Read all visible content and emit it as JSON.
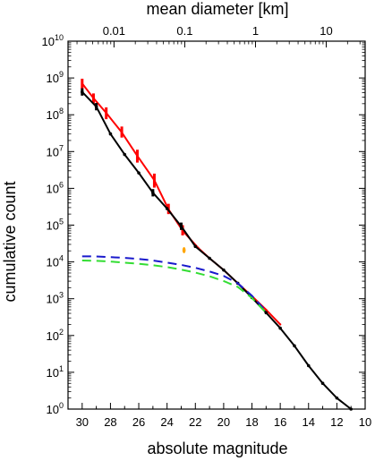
{
  "chart_data": {
    "type": "line",
    "xlabel": "absolute magnitude",
    "ylabel": "cumulative count",
    "top_axis_label": "mean diameter [km]",
    "x_range": [
      31,
      10
    ],
    "y_range_log10": [
      0,
      10
    ],
    "y_scale": "log",
    "grid": false,
    "x_ticks": [
      "30",
      "28",
      "26",
      "24",
      "22",
      "20",
      "18",
      "16",
      "14",
      "12",
      "10"
    ],
    "x_tick_values": [
      30,
      28,
      26,
      24,
      22,
      20,
      18,
      16,
      14,
      12,
      10
    ],
    "y_ticks": [
      {
        "base": "10",
        "exp": "0",
        "value": 0
      },
      {
        "base": "10",
        "exp": "1",
        "value": 1
      },
      {
        "base": "10",
        "exp": "2",
        "value": 2
      },
      {
        "base": "10",
        "exp": "3",
        "value": 3
      },
      {
        "base": "10",
        "exp": "4",
        "value": 4
      },
      {
        "base": "10",
        "exp": "5",
        "value": 5
      },
      {
        "base": "10",
        "exp": "6",
        "value": 6
      },
      {
        "base": "10",
        "exp": "7",
        "value": 7
      },
      {
        "base": "10",
        "exp": "8",
        "value": 8
      },
      {
        "base": "10",
        "exp": "9",
        "value": 9
      },
      {
        "base": "10",
        "exp": "10",
        "value": 10
      }
    ],
    "top_ticks": [
      {
        "label": "0.01",
        "h": 27.75
      },
      {
        "label": "0.1",
        "h": 22.75
      },
      {
        "label": "1",
        "h": 17.75
      },
      {
        "label": "10",
        "h": 12.75
      }
    ],
    "series": [
      {
        "color": "#ff0000",
        "style": "solid-with-errorbars",
        "points": [
          {
            "h": 30.0,
            "log": 8.85,
            "lo": 8.7,
            "hi": 8.98
          },
          {
            "h": 29.2,
            "log": 8.45,
            "lo": 8.3,
            "hi": 8.58
          },
          {
            "h": 28.3,
            "log": 8.05,
            "lo": 7.88,
            "hi": 8.2
          },
          {
            "h": 27.2,
            "log": 7.52,
            "lo": 7.38,
            "hi": 7.68
          },
          {
            "h": 26.1,
            "log": 6.88,
            "lo": 6.7,
            "hi": 7.05
          },
          {
            "h": 24.9,
            "log": 6.22,
            "lo": 6.02,
            "hi": 6.4
          },
          {
            "h": 23.9,
            "log": 5.43,
            "lo": 5.3,
            "hi": 5.58
          },
          {
            "h": 22.9,
            "log": 4.85,
            "lo": 4.72,
            "hi": 5.0
          },
          {
            "h": 21.8,
            "log": 4.38,
            "lo": 4.38,
            "hi": 4.38
          },
          {
            "h": 21.0,
            "log": 4.1,
            "lo": 4.1,
            "hi": 4.1
          },
          {
            "h": 20.0,
            "log": 3.78,
            "lo": 3.78,
            "hi": 3.78
          },
          {
            "h": 19.0,
            "log": 3.42,
            "lo": 3.42,
            "hi": 3.42
          },
          {
            "h": 18.0,
            "log": 3.07,
            "lo": 3.07,
            "hi": 3.07
          },
          {
            "h": 17.0,
            "log": 2.7,
            "lo": 2.7,
            "hi": 2.7
          },
          {
            "h": 16.0,
            "log": 2.3,
            "lo": 2.3,
            "hi": 2.3
          }
        ]
      },
      {
        "color": "#000000",
        "style": "solid-with-points",
        "points": [
          {
            "h": 30.0,
            "log": 8.62,
            "lo": 8.52,
            "hi": 8.72
          },
          {
            "h": 29.0,
            "log": 8.22,
            "lo": 8.12,
            "hi": 8.32
          },
          {
            "h": 28.0,
            "log": 7.48
          },
          {
            "h": 27.0,
            "log": 6.92
          },
          {
            "h": 26.0,
            "log": 6.42
          },
          {
            "h": 25.0,
            "log": 5.88,
            "lo": 5.78,
            "hi": 5.98
          },
          {
            "h": 24.0,
            "log": 5.45
          },
          {
            "h": 23.0,
            "log": 4.97,
            "lo": 4.87,
            "hi": 5.07
          },
          {
            "h": 22.0,
            "log": 4.42
          },
          {
            "h": 21.0,
            "log": 4.1
          },
          {
            "h": 20.0,
            "log": 3.78
          },
          {
            "h": 19.0,
            "log": 3.42
          },
          {
            "h": 18.0,
            "log": 3.03
          },
          {
            "h": 17.0,
            "log": 2.62
          },
          {
            "h": 16.0,
            "log": 2.2
          },
          {
            "h": 15.0,
            "log": 1.72
          },
          {
            "h": 14.0,
            "log": 1.18
          },
          {
            "h": 13.0,
            "log": 0.7
          },
          {
            "h": 12.0,
            "log": 0.3
          },
          {
            "h": 11.0,
            "log": 0.0
          }
        ]
      },
      {
        "color": "#1a1acc",
        "style": "dashed",
        "points": [
          {
            "h": 30.0,
            "log": 4.15
          },
          {
            "h": 29.0,
            "log": 4.15
          },
          {
            "h": 28.0,
            "log": 4.13
          },
          {
            "h": 27.0,
            "log": 4.11
          },
          {
            "h": 26.0,
            "log": 4.08
          },
          {
            "h": 25.0,
            "log": 4.04
          },
          {
            "h": 24.0,
            "log": 3.98
          },
          {
            "h": 23.0,
            "log": 3.92
          },
          {
            "h": 22.0,
            "log": 3.84
          },
          {
            "h": 21.0,
            "log": 3.74
          },
          {
            "h": 20.0,
            "log": 3.62
          },
          {
            "h": 19.0,
            "log": 3.42
          },
          {
            "h": 18.0,
            "log": 3.08
          },
          {
            "h": 17.0,
            "log": 2.66
          }
        ]
      },
      {
        "color": "#33dd33",
        "style": "dashed",
        "points": [
          {
            "h": 30.0,
            "log": 4.04
          },
          {
            "h": 29.0,
            "log": 4.03
          },
          {
            "h": 28.0,
            "log": 4.01
          },
          {
            "h": 27.0,
            "log": 3.98
          },
          {
            "h": 26.0,
            "log": 3.95
          },
          {
            "h": 25.0,
            "log": 3.91
          },
          {
            "h": 24.0,
            "log": 3.86
          },
          {
            "h": 23.0,
            "log": 3.79
          },
          {
            "h": 22.0,
            "log": 3.71
          },
          {
            "h": 21.0,
            "log": 3.61
          },
          {
            "h": 20.0,
            "log": 3.48
          },
          {
            "h": 19.0,
            "log": 3.32
          },
          {
            "h": 18.0,
            "log": 3.02
          },
          {
            "h": 17.0,
            "log": 2.62
          }
        ]
      }
    ],
    "markers": [
      {
        "color": "#ffa500",
        "h": 22.8,
        "log": 4.32
      }
    ]
  }
}
